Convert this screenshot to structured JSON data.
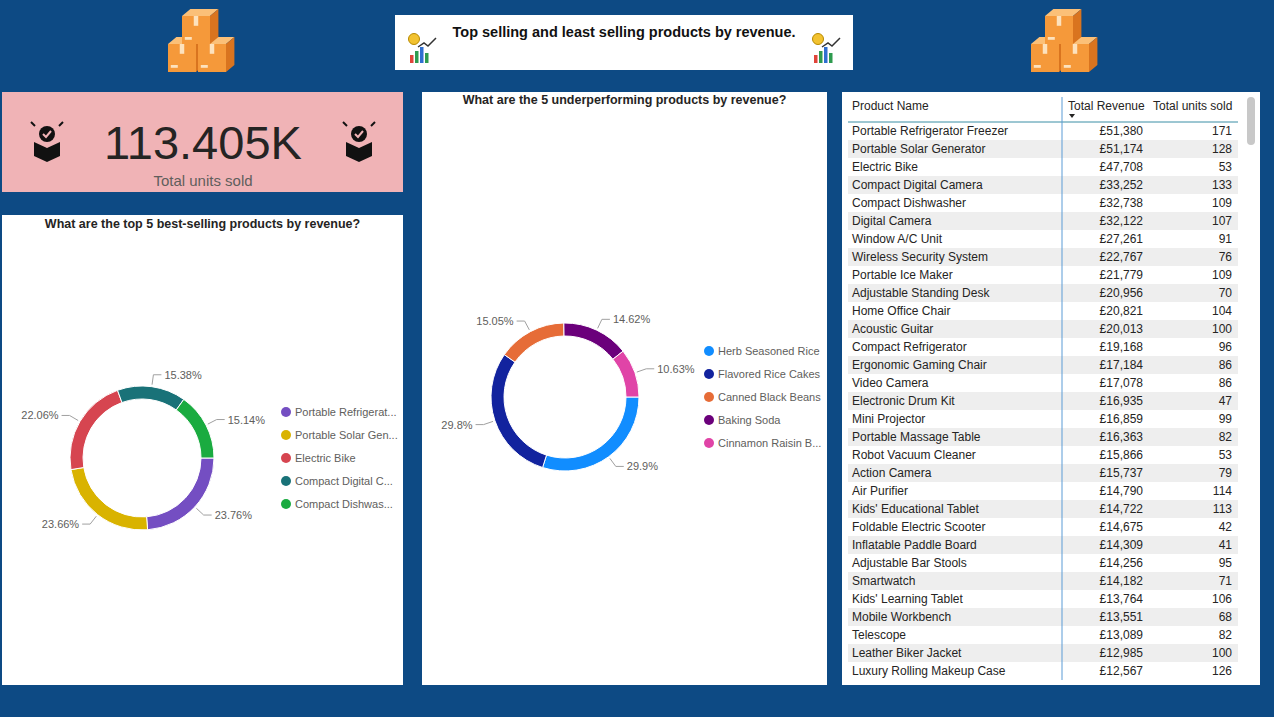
{
  "header": {
    "title": "Top selling and least selling products by revenue."
  },
  "kpi": {
    "value": "113.405K",
    "label": "Total units sold"
  },
  "chart_data": [
    {
      "type": "pie",
      "title": "What are the top 5 best-selling products by revenue?",
      "categories": [
        "Portable Refrigerat...",
        "Portable Solar Gen...",
        "Electric Bike",
        "Compact Digital C...",
        "Compact Dishwas..."
      ],
      "values": [
        23.76,
        23.66,
        22.06,
        15.38,
        15.14
      ],
      "value_labels": [
        "23.76%",
        "23.66%",
        "22.06%",
        "15.38%",
        "15.14%"
      ],
      "colors": [
        "#744ec2",
        "#d9b300",
        "#d64550",
        "#197278",
        "#1aab40"
      ],
      "data_labels": true,
      "legend": "right"
    },
    {
      "type": "pie",
      "title": "What are the 5 underperforming products by revenue?",
      "categories": [
        "Herb Seasoned Rice",
        "Flavored Rice Cakes",
        "Canned Black Beans",
        "Baking Soda",
        "Cinnamon Raisin B..."
      ],
      "values": [
        29.9,
        29.8,
        15.05,
        14.62,
        10.63
      ],
      "value_labels": [
        "29.9%",
        "29.8%",
        "15.05%",
        "14.62%",
        "10.63%"
      ],
      "colors": [
        "#118dff",
        "#12239e",
        "#e66c37",
        "#6b007b",
        "#e044a7"
      ],
      "data_labels": true,
      "legend": "right"
    }
  ],
  "table": {
    "columns": [
      "Product Name",
      "Total Revenue",
      "Total units sold"
    ],
    "rows": [
      [
        "Portable Refrigerator Freezer",
        "£51,380",
        "171"
      ],
      [
        "Portable Solar Generator",
        "£51,174",
        "128"
      ],
      [
        "Electric Bike",
        "£47,708",
        "53"
      ],
      [
        "Compact Digital Camera",
        "£33,252",
        "133"
      ],
      [
        "Compact Dishwasher",
        "£32,738",
        "109"
      ],
      [
        "Digital Camera",
        "£32,122",
        "107"
      ],
      [
        "Window A/C Unit",
        "£27,261",
        "91"
      ],
      [
        "Wireless Security System",
        "£22,767",
        "76"
      ],
      [
        "Portable Ice Maker",
        "£21,779",
        "109"
      ],
      [
        "Adjustable Standing Desk",
        "£20,956",
        "70"
      ],
      [
        "Home Office Chair",
        "£20,821",
        "104"
      ],
      [
        "Acoustic Guitar",
        "£20,013",
        "100"
      ],
      [
        "Compact Refrigerator",
        "£19,168",
        "96"
      ],
      [
        "Ergonomic Gaming Chair",
        "£17,184",
        "86"
      ],
      [
        "Video Camera",
        "£17,078",
        "86"
      ],
      [
        "Electronic Drum Kit",
        "£16,935",
        "47"
      ],
      [
        "Mini Projector",
        "£16,859",
        "99"
      ],
      [
        "Portable Massage Table",
        "£16,363",
        "82"
      ],
      [
        "Robot Vacuum Cleaner",
        "£15,866",
        "53"
      ],
      [
        "Action Camera",
        "£15,737",
        "79"
      ],
      [
        "Air Purifier",
        "£14,790",
        "114"
      ],
      [
        "Kids' Educational Tablet",
        "£14,722",
        "113"
      ],
      [
        "Foldable Electric Scooter",
        "£14,675",
        "42"
      ],
      [
        "Inflatable Paddle Board",
        "£14,309",
        "41"
      ],
      [
        "Adjustable Bar Stools",
        "£14,256",
        "95"
      ],
      [
        "Smartwatch",
        "£14,182",
        "71"
      ],
      [
        "Kids' Learning Tablet",
        "£13,764",
        "106"
      ],
      [
        "Mobile Workbench",
        "£13,551",
        "68"
      ],
      [
        "Telescope",
        "£13,089",
        "82"
      ],
      [
        "Leather Biker Jacket",
        "£12,985",
        "100"
      ],
      [
        "Luxury Rolling Makeup Case",
        "£12,567",
        "126"
      ]
    ]
  }
}
